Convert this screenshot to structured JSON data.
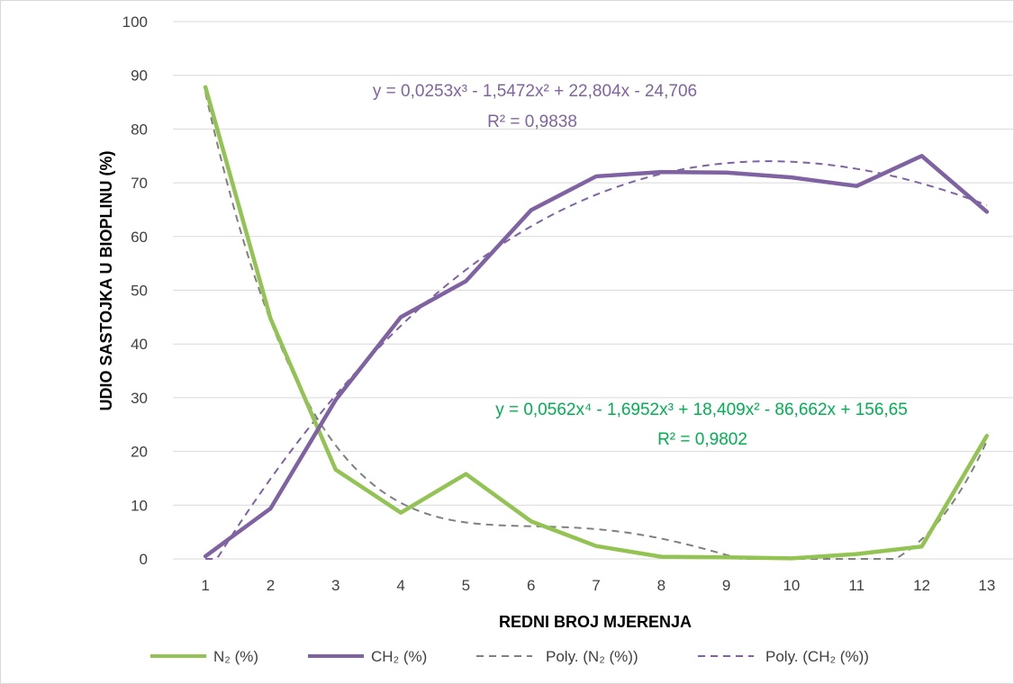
{
  "chart_data": {
    "type": "line",
    "title": "",
    "xlabel": "REDNI BROJ MJERENJA",
    "ylabel": "UDIO SASTOJKA U BIOPLINU (%)",
    "x": [
      1,
      2,
      3,
      4,
      5,
      6,
      7,
      8,
      9,
      10,
      11,
      12,
      13
    ],
    "ylim": [
      0,
      100
    ],
    "yticks": [
      0,
      10,
      20,
      30,
      40,
      50,
      60,
      70,
      80,
      90,
      100
    ],
    "grid": true,
    "legend_position": "bottom",
    "series": [
      {
        "name": "N₂ (%)",
        "color": "#92c353",
        "style": "solid",
        "values": [
          87.8,
          44.7,
          16.6,
          8.6,
          15.8,
          7.0,
          2.4,
          0.4,
          0.3,
          0.1,
          0.9,
          2.3,
          22.9
        ]
      },
      {
        "name": "CH₂ (%)",
        "color": "#7f62a2",
        "style": "solid",
        "values": [
          0.5,
          9.4,
          29.6,
          45.0,
          51.7,
          64.9,
          71.2,
          72.0,
          71.9,
          71.0,
          69.4,
          75.0,
          64.6
        ]
      },
      {
        "name": "Poly. (N₂ (%))",
        "color": "#808080",
        "style": "dashed",
        "trend": "poly4",
        "coefficients": [
          0.0562,
          -1.6952,
          18.409,
          -86.662,
          156.65
        ]
      },
      {
        "name": "Poly. (CH₂ (%))",
        "color": "#7f62a2",
        "style": "dashed",
        "trend": "poly3",
        "coefficients": [
          0.0253,
          -1.5472,
          22.804,
          -24.706
        ]
      }
    ],
    "annotations": [
      {
        "series": "CH₂",
        "color": "#8064a2",
        "equation": "y = 0,0253x³ - 1,5472x² + 22,804x - 24,706",
        "r2": "R² = 0,9838"
      },
      {
        "series": "N₂",
        "color": "#00b050",
        "equation": "y = 0,0562x⁴ - 1,6952x³ + 18,409x² - 86,662x + 156,65",
        "r2": "R² = 0,9802"
      }
    ]
  }
}
